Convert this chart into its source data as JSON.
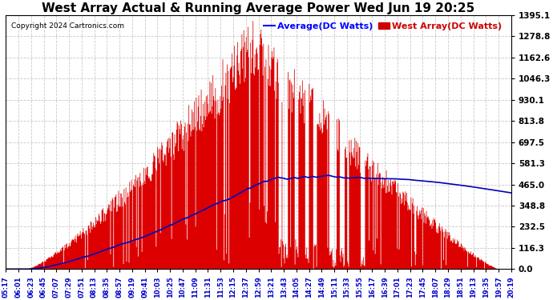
{
  "title": "West Array Actual & Running Average Power Wed Jun 19 20:25",
  "copyright": "Copyright 2024 Cartronics.com",
  "legend_avg": "Average(DC Watts)",
  "legend_west": "West Array(DC Watts)",
  "ymax": 1395.1,
  "ymin": 0.0,
  "yticks": [
    0.0,
    116.3,
    232.5,
    348.8,
    465.0,
    581.3,
    697.5,
    813.8,
    930.1,
    1046.3,
    1162.6,
    1278.8,
    1395.1
  ],
  "background_color": "#ffffff",
  "fill_color": "#dd0000",
  "avg_line_color": "#0000bb",
  "grid_color": "#bbbbbb",
  "title_color": "#000000",
  "copyright_color": "#000000",
  "avg_legend_color": "#0000ff",
  "west_legend_color": "#cc0000",
  "xtick_color": "#0000cc",
  "ytick_color": "#000000",
  "xtick_labels": [
    "05:17",
    "06:01",
    "06:23",
    "06:45",
    "07:07",
    "07:29",
    "07:51",
    "08:13",
    "08:35",
    "08:57",
    "09:19",
    "09:41",
    "10:03",
    "10:25",
    "10:47",
    "11:09",
    "11:31",
    "11:53",
    "12:15",
    "12:37",
    "12:59",
    "13:21",
    "13:43",
    "14:05",
    "14:27",
    "14:49",
    "15:11",
    "15:33",
    "15:55",
    "16:17",
    "16:39",
    "17:01",
    "17:23",
    "17:45",
    "18:07",
    "18:29",
    "18:51",
    "19:13",
    "19:35",
    "19:57",
    "20:19"
  ],
  "n_points": 820
}
